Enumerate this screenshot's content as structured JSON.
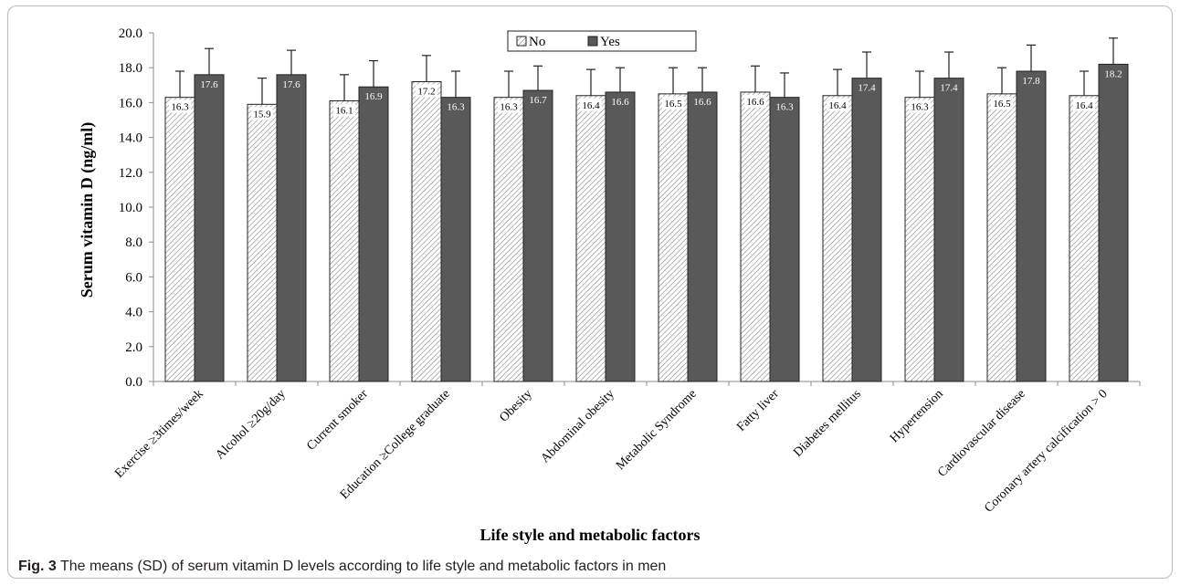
{
  "chart_data": {
    "type": "bar",
    "title": "",
    "xlabel": "Life style and metabolic factors",
    "ylabel": "Serum vitamin D (ng/ml)",
    "ylim": [
      0,
      20
    ],
    "ytick_step": 2,
    "ytick_labels": [
      "0.0",
      "2.0",
      "4.0",
      "6.0",
      "8.0",
      "10.0",
      "12.0",
      "14.0",
      "16.0",
      "18.0",
      "20.0"
    ],
    "grid": false,
    "legend_position": "top-center",
    "categories": [
      "Exercise ≥3times/week",
      "Alcohol ≥20g/day",
      "Current smoker",
      "Education ≥College graduate",
      "Obesity",
      "Abdominal obesity",
      "Metabolic Syndrome",
      "Fatty liver",
      "Diabetes mellitus",
      "Hypertension",
      "Cardiovascular disease",
      "Coronary artery calcification > 0"
    ],
    "series": [
      {
        "name": "No",
        "pattern": "diagonal-hatch",
        "color": "#ffffff",
        "values": [
          16.3,
          15.9,
          16.1,
          17.2,
          16.3,
          16.4,
          16.5,
          16.6,
          16.4,
          16.3,
          16.5,
          16.4
        ],
        "value_labels": [
          "16.3",
          "15.9",
          "16.1",
          "17.2",
          "16.3",
          "16.4",
          "16.5",
          "16.6",
          "16.4",
          "16.3",
          "16.5",
          "16.4"
        ],
        "errors": [
          1.5,
          1.5,
          1.5,
          1.5,
          1.5,
          1.5,
          1.5,
          1.5,
          1.5,
          1.5,
          1.5,
          1.4
        ]
      },
      {
        "name": "Yes",
        "pattern": "solid",
        "color": "#595959",
        "values": [
          17.6,
          17.6,
          16.9,
          16.3,
          16.7,
          16.6,
          16.6,
          16.3,
          17.4,
          17.4,
          17.8,
          18.2
        ],
        "value_labels": [
          "17.6",
          "17.6",
          "16.9",
          "16.3",
          "16.7",
          "16.6",
          "16.6",
          "16.3",
          "17.4",
          "17.4",
          "17.8",
          "18.2"
        ],
        "errors": [
          1.5,
          1.4,
          1.5,
          1.5,
          1.4,
          1.4,
          1.4,
          1.4,
          1.5,
          1.5,
          1.5,
          1.5
        ]
      }
    ]
  },
  "caption": {
    "label": "Fig. 3",
    "text": "The means (SD) of serum vitamin D levels according to life style and metabolic factors in men"
  }
}
